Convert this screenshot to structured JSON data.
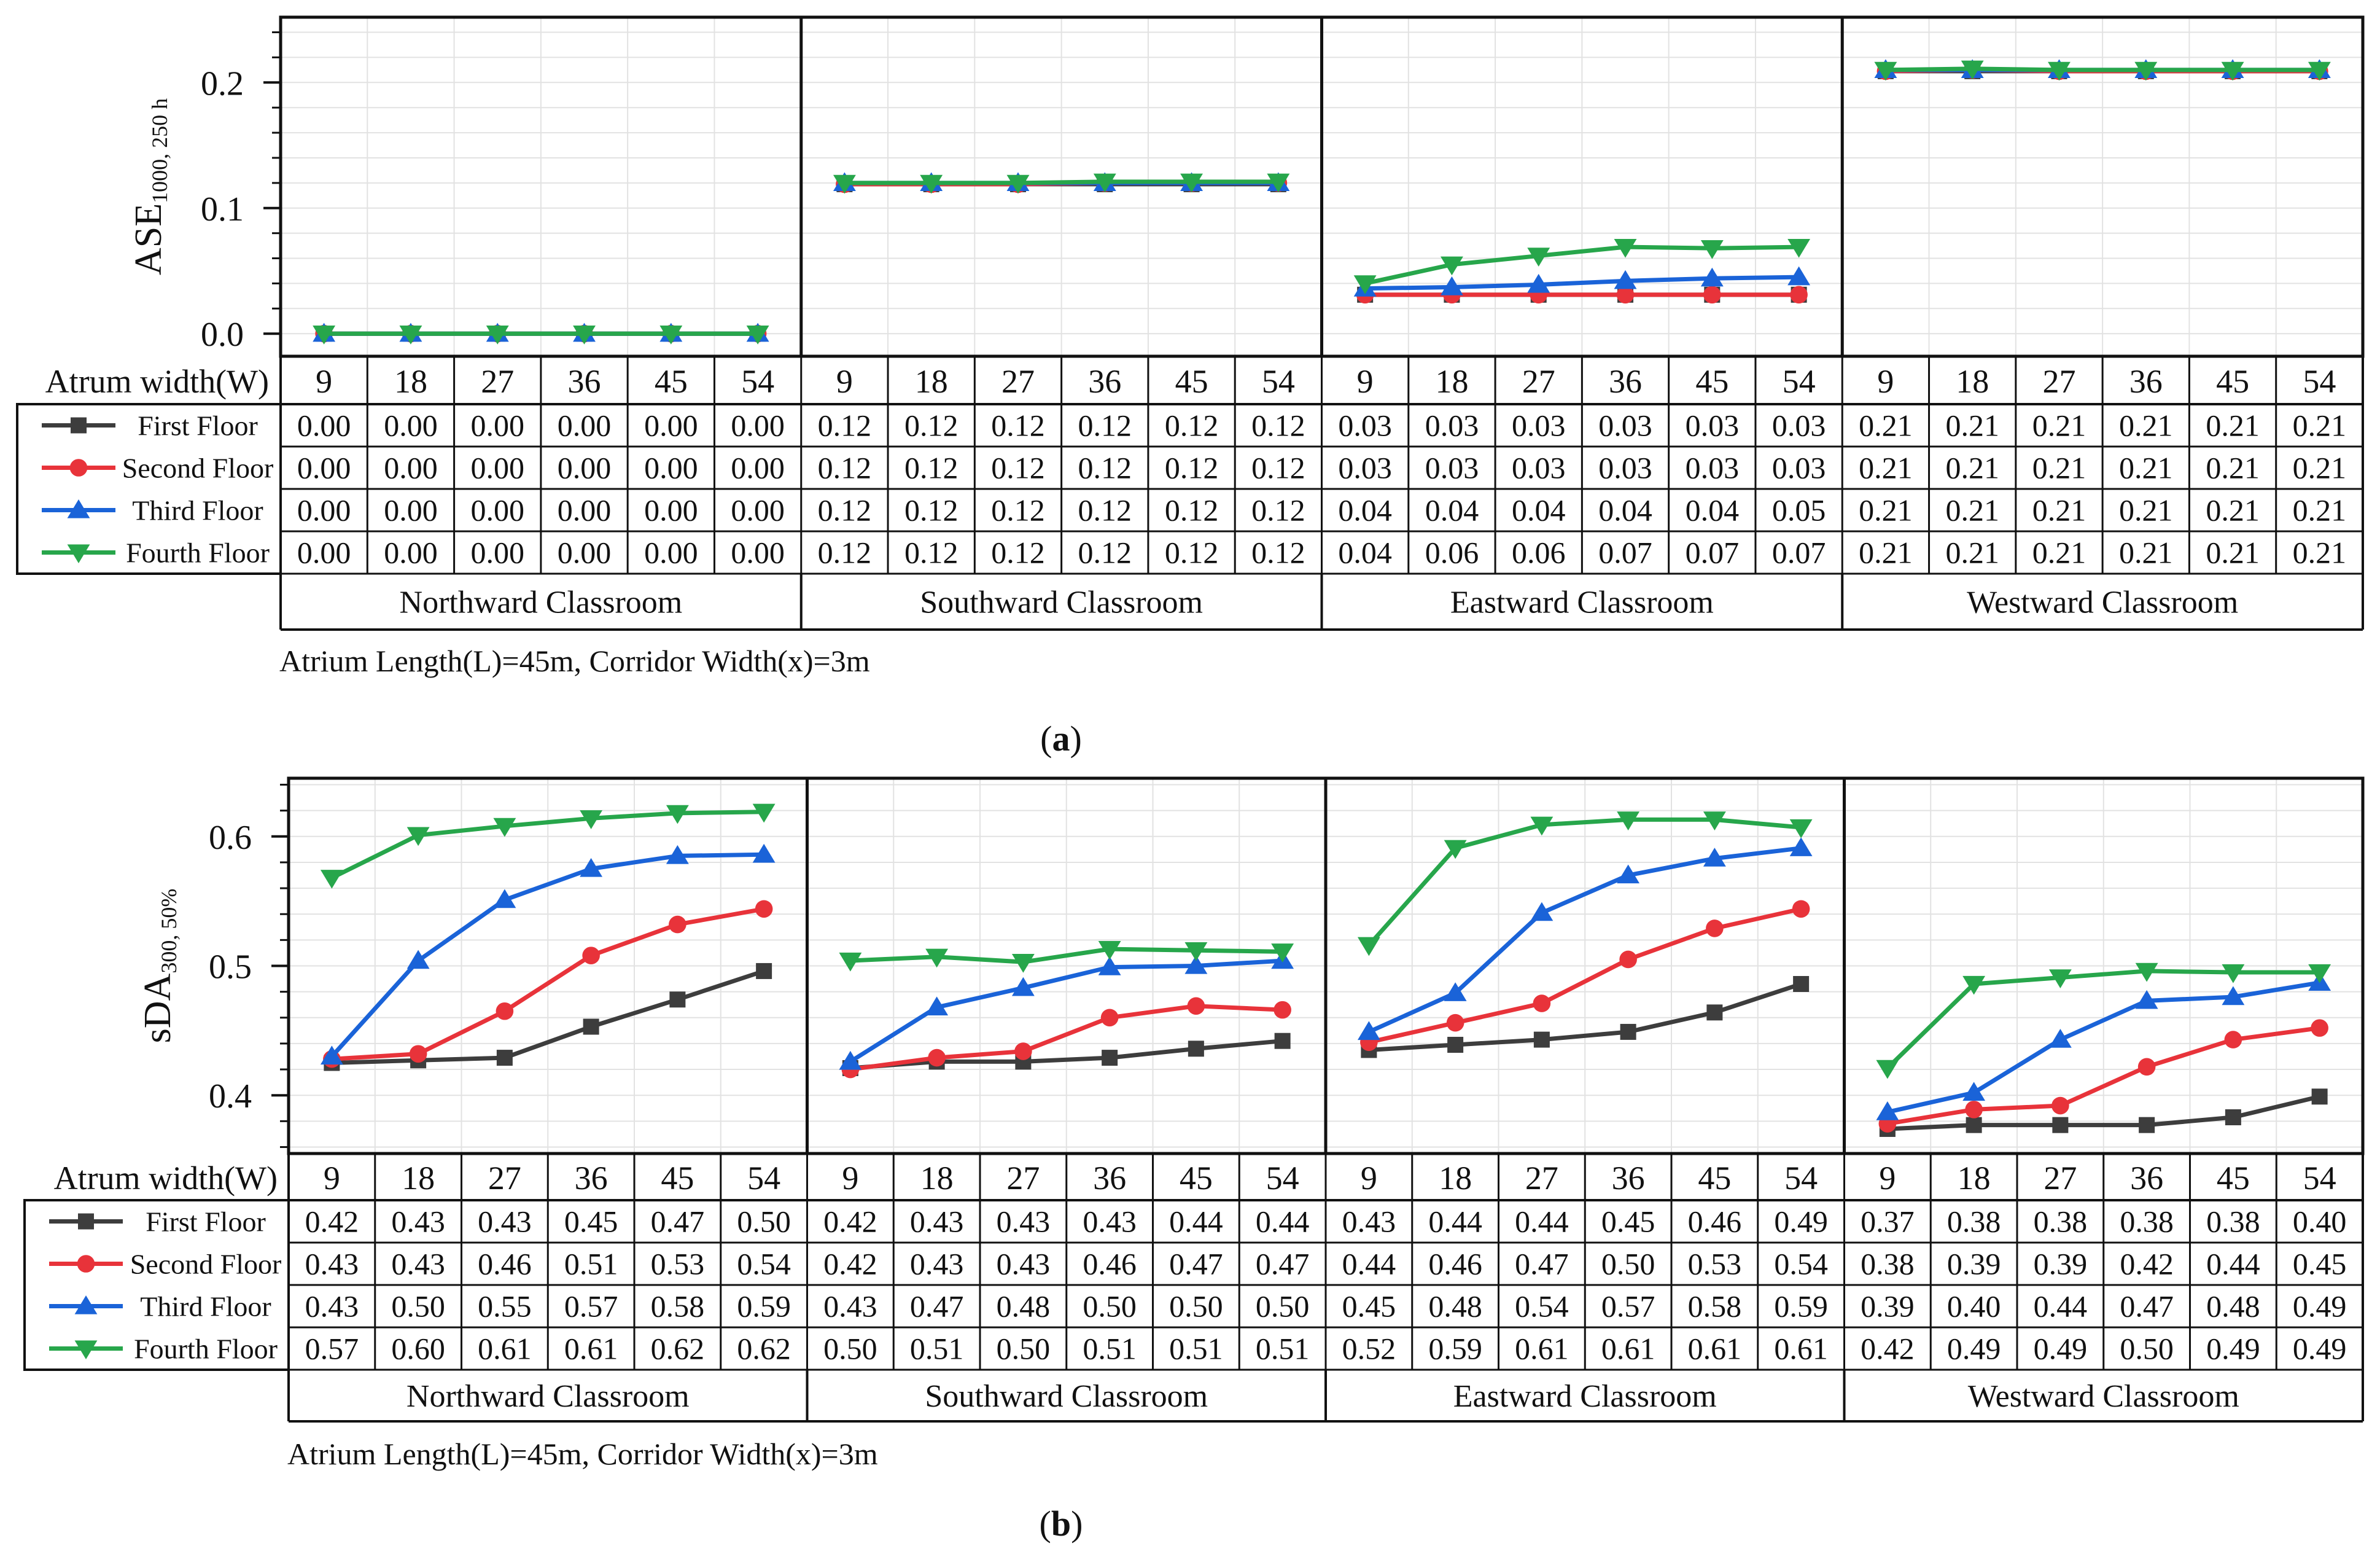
{
  "figure": {
    "colors": {
      "first": "#3d3d3d",
      "second": "#e8333a",
      "third": "#1a63d8",
      "fourth": "#27a64b",
      "grid": "#e2e2e2",
      "frame": "#111111"
    }
  },
  "chart_data": [
    {
      "type": "line",
      "panel_label": "(a)",
      "ylabel": "ASE",
      "ylabel_sub": "1000, 250 h",
      "ylim": [
        -0.018,
        0.252
      ],
      "yticks": [
        0.0,
        0.1,
        0.2
      ],
      "ytick_labels": [
        "0.0",
        "0.1",
        "0.2"
      ],
      "x_header_label": "Atrum width(W)",
      "x": [
        "9",
        "18",
        "27",
        "36",
        "45",
        "54"
      ],
      "groups": [
        "Northward Classroom",
        "Southward Classroom",
        "Eastward Classroom",
        "Westward Classroom"
      ],
      "series": [
        {
          "name": "First  Floor",
          "key": "first",
          "marker": "square",
          "values": [
            [
              0.0,
              0.0,
              0.0,
              0.0,
              0.0,
              0.0
            ],
            [
              0.119,
              0.119,
              0.119,
              0.119,
              0.119,
              0.119
            ],
            [
              0.031,
              0.031,
              0.031,
              0.031,
              0.031,
              0.031
            ],
            [
              0.209,
              0.209,
              0.209,
              0.209,
              0.209,
              0.209
            ]
          ],
          "labels": [
            [
              "0.00",
              "0.00",
              "0.00",
              "0.00",
              "0.00",
              "0.00"
            ],
            [
              "0.12",
              "0.12",
              "0.12",
              "0.12",
              "0.12",
              "0.12"
            ],
            [
              "0.03",
              "0.03",
              "0.03",
              "0.03",
              "0.03",
              "0.03"
            ],
            [
              "0.21",
              "0.21",
              "0.21",
              "0.21",
              "0.21",
              "0.21"
            ]
          ]
        },
        {
          "name": "Second Floor",
          "key": "second",
          "marker": "circle",
          "values": [
            [
              0.0,
              0.0,
              0.0,
              0.0,
              0.0,
              0.0
            ],
            [
              0.119,
              0.119,
              0.119,
              0.12,
              0.12,
              0.12
            ],
            [
              0.031,
              0.031,
              0.031,
              0.031,
              0.031,
              0.031
            ],
            [
              0.209,
              0.21,
              0.209,
              0.209,
              0.209,
              0.209
            ]
          ],
          "labels": [
            [
              "0.00",
              "0.00",
              "0.00",
              "0.00",
              "0.00",
              "0.00"
            ],
            [
              "0.12",
              "0.12",
              "0.12",
              "0.12",
              "0.12",
              "0.12"
            ],
            [
              "0.03",
              "0.03",
              "0.03",
              "0.03",
              "0.03",
              "0.03"
            ],
            [
              "0.21",
              "0.21",
              "0.21",
              "0.21",
              "0.21",
              "0.21"
            ]
          ]
        },
        {
          "name": "Third  Floor",
          "key": "third",
          "marker": "triangle-up",
          "values": [
            [
              0.0,
              0.0,
              0.0,
              0.0,
              0.0,
              0.0
            ],
            [
              0.12,
              0.12,
              0.12,
              0.12,
              0.12,
              0.12
            ],
            [
              0.036,
              0.037,
              0.039,
              0.042,
              0.044,
              0.045
            ],
            [
              0.21,
              0.21,
              0.21,
              0.21,
              0.21,
              0.21
            ]
          ],
          "labels": [
            [
              "0.00",
              "0.00",
              "0.00",
              "0.00",
              "0.00",
              "0.00"
            ],
            [
              "0.12",
              "0.12",
              "0.12",
              "0.12",
              "0.12",
              "0.12"
            ],
            [
              "0.04",
              "0.04",
              "0.04",
              "0.04",
              "0.04",
              "0.05"
            ],
            [
              "0.21",
              "0.21",
              "0.21",
              "0.21",
              "0.21",
              "0.21"
            ]
          ]
        },
        {
          "name": "Fourth Floor",
          "key": "fourth",
          "marker": "triangle-down",
          "values": [
            [
              0.0,
              0.0,
              0.0,
              0.0,
              0.0,
              0.0
            ],
            [
              0.12,
              0.12,
              0.12,
              0.121,
              0.121,
              0.121
            ],
            [
              0.04,
              0.055,
              0.062,
              0.069,
              0.068,
              0.069
            ],
            [
              0.21,
              0.211,
              0.21,
              0.21,
              0.21,
              0.21
            ]
          ],
          "labels": [
            [
              "0.00",
              "0.00",
              "0.00",
              "0.00",
              "0.00",
              "0.00"
            ],
            [
              "0.12",
              "0.12",
              "0.12",
              "0.12",
              "0.12",
              "0.12"
            ],
            [
              "0.04",
              "0.06",
              "0.06",
              "0.07",
              "0.07",
              "0.07"
            ],
            [
              "0.21",
              "0.21",
              "0.21",
              "0.21",
              "0.21",
              "0.21"
            ]
          ]
        }
      ],
      "caption": "Atrium Length(L)=45m, Corridor Width(x)=3m"
    },
    {
      "type": "line",
      "panel_label": "(b)",
      "ylabel": "sDA",
      "ylabel_sub": "300, 50%",
      "ylim": [
        0.355,
        0.645
      ],
      "yticks": [
        0.4,
        0.5,
        0.6
      ],
      "ytick_labels": [
        "0.4",
        "0.5",
        "0.6"
      ],
      "x_header_label": "Atrum width(W)",
      "x": [
        "9",
        "18",
        "27",
        "36",
        "45",
        "54"
      ],
      "groups": [
        "Northward Classroom",
        "Southward Classroom",
        "Eastward Classroom",
        "Westward Classroom"
      ],
      "series": [
        {
          "name": "First  Floor",
          "key": "first",
          "marker": "square",
          "values": [
            [
              0.425,
              0.427,
              0.429,
              0.453,
              0.474,
              0.496
            ],
            [
              0.421,
              0.426,
              0.426,
              0.429,
              0.436,
              0.442
            ],
            [
              0.435,
              0.439,
              0.443,
              0.449,
              0.464,
              0.486
            ],
            [
              0.374,
              0.377,
              0.377,
              0.377,
              0.383,
              0.399
            ]
          ],
          "labels": [
            [
              "0.42",
              "0.43",
              "0.43",
              "0.45",
              "0.47",
              "0.50"
            ],
            [
              "0.42",
              "0.43",
              "0.43",
              "0.43",
              "0.44",
              "0.44"
            ],
            [
              "0.43",
              "0.44",
              "0.44",
              "0.45",
              "0.46",
              "0.49"
            ],
            [
              "0.37",
              "0.38",
              "0.38",
              "0.38",
              "0.38",
              "0.40"
            ]
          ]
        },
        {
          "name": "Second Floor",
          "key": "second",
          "marker": "circle",
          "values": [
            [
              0.428,
              0.432,
              0.465,
              0.508,
              0.532,
              0.544
            ],
            [
              0.42,
              0.429,
              0.434,
              0.46,
              0.469,
              0.466
            ],
            [
              0.441,
              0.456,
              0.471,
              0.505,
              0.529,
              0.544
            ],
            [
              0.378,
              0.389,
              0.392,
              0.422,
              0.443,
              0.452
            ]
          ],
          "labels": [
            [
              "0.43",
              "0.43",
              "0.46",
              "0.51",
              "0.53",
              "0.54"
            ],
            [
              "0.42",
              "0.43",
              "0.43",
              "0.46",
              "0.47",
              "0.47"
            ],
            [
              "0.44",
              "0.46",
              "0.47",
              "0.50",
              "0.53",
              "0.54"
            ],
            [
              "0.38",
              "0.39",
              "0.39",
              "0.42",
              "0.44",
              "0.45"
            ]
          ]
        },
        {
          "name": "Third  Floor",
          "key": "third",
          "marker": "triangle-up",
          "values": [
            [
              0.43,
              0.504,
              0.551,
              0.575,
              0.585,
              0.586
            ],
            [
              0.426,
              0.468,
              0.483,
              0.499,
              0.5,
              0.504
            ],
            [
              0.449,
              0.479,
              0.541,
              0.57,
              0.583,
              0.591
            ],
            [
              0.387,
              0.402,
              0.443,
              0.473,
              0.476,
              0.487
            ]
          ],
          "labels": [
            [
              "0.43",
              "0.50",
              "0.55",
              "0.57",
              "0.58",
              "0.59"
            ],
            [
              "0.43",
              "0.47",
              "0.48",
              "0.50",
              "0.50",
              "0.50"
            ],
            [
              "0.45",
              "0.48",
              "0.54",
              "0.57",
              "0.58",
              "0.59"
            ],
            [
              "0.39",
              "0.40",
              "0.44",
              "0.47",
              "0.48",
              "0.49"
            ]
          ]
        },
        {
          "name": "Fourth Floor",
          "key": "fourth",
          "marker": "triangle-down",
          "values": [
            [
              0.568,
              0.601,
              0.608,
              0.614,
              0.618,
              0.619
            ],
            [
              0.504,
              0.507,
              0.503,
              0.513,
              0.512,
              0.511
            ],
            [
              0.516,
              0.591,
              0.609,
              0.613,
              0.613,
              0.607
            ],
            [
              0.421,
              0.486,
              0.491,
              0.496,
              0.495,
              0.495
            ]
          ],
          "labels": [
            [
              "0.57",
              "0.60",
              "0.61",
              "0.61",
              "0.62",
              "0.62"
            ],
            [
              "0.50",
              "0.51",
              "0.50",
              "0.51",
              "0.51",
              "0.51"
            ],
            [
              "0.52",
              "0.59",
              "0.61",
              "0.61",
              "0.61",
              "0.61"
            ],
            [
              "0.42",
              "0.49",
              "0.49",
              "0.50",
              "0.49",
              "0.49"
            ]
          ]
        }
      ],
      "caption": "Atrium Length(L)=45m, Corridor Width(x)=3m"
    }
  ]
}
